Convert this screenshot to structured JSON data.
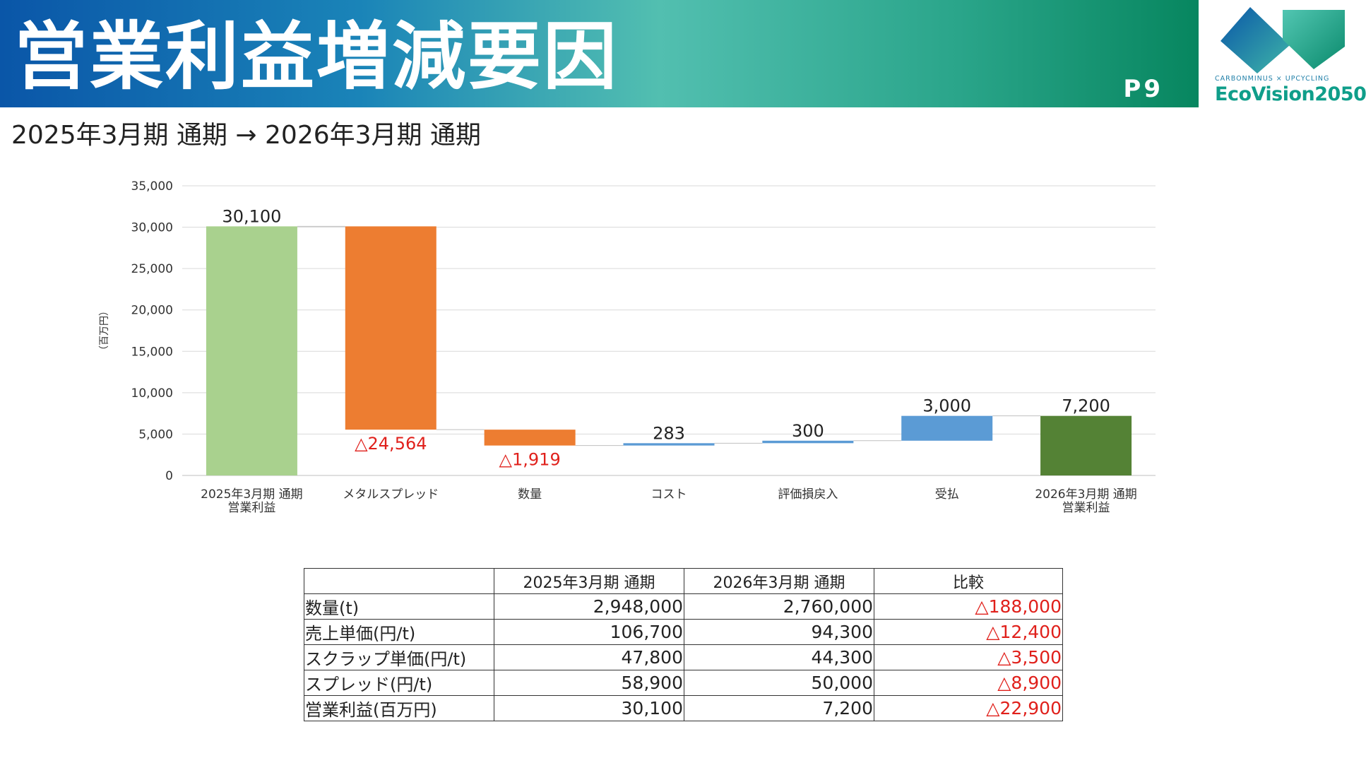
{
  "header": {
    "title": "営業利益増減要因",
    "page_number": "P9",
    "logo_tagline": "CARBONMINUS × UPCYCLING",
    "logo_name": "EcoVision2050",
    "accent_color": "#07865f",
    "gradient_start": "#0a56a8"
  },
  "subtitle": "2025年3月期 通期 → 2026年3月期 通期",
  "chart_data": {
    "type": "waterfall",
    "ylabel": "（百万円）",
    "ylim": [
      0,
      35000
    ],
    "yticks": [
      "0",
      "5,000",
      "10,000",
      "15,000",
      "20,000",
      "25,000",
      "30,000",
      "35,000"
    ],
    "grid": true,
    "categories": [
      [
        "2025年3月期 通期",
        "営業利益"
      ],
      [
        "メタルスプレッド"
      ],
      [
        "数量"
      ],
      [
        "コスト"
      ],
      [
        "評価損戻入"
      ],
      [
        "受払"
      ],
      [
        "2026年3月期 通期",
        "営業利益"
      ]
    ],
    "steps": [
      {
        "kind": "total",
        "value": 30100,
        "label": "30,100",
        "color": "#a9d18e"
      },
      {
        "kind": "delta",
        "value": -24564,
        "label": "△24,564",
        "color": "#ed7d31"
      },
      {
        "kind": "delta",
        "value": -1919,
        "label": "△1,919",
        "color": "#ed7d31"
      },
      {
        "kind": "delta",
        "value": 283,
        "label": "283",
        "color": "#5b9bd5"
      },
      {
        "kind": "delta",
        "value": 300,
        "label": "300",
        "color": "#5b9bd5"
      },
      {
        "kind": "delta",
        "value": 3000,
        "label": "3,000",
        "color": "#5b9bd5"
      },
      {
        "kind": "total",
        "value": 7200,
        "label": "7,200",
        "color": "#548235"
      }
    ]
  },
  "table": {
    "headers": [
      "",
      "2025年3月期 通期",
      "2026年3月期 通期",
      "比較"
    ],
    "rows": [
      [
        "数量(t)",
        "2,948,000",
        "2,760,000",
        "△188,000"
      ],
      [
        "売上単価(円/t)",
        "106,700",
        "94,300",
        "△12,400"
      ],
      [
        "スクラップ単価(円/t)",
        "47,800",
        "44,300",
        "△3,500"
      ],
      [
        "スプレッド(円/t)",
        "58,900",
        "50,000",
        "△8,900"
      ],
      [
        "営業利益(百万円)",
        "30,100",
        "7,200",
        "△22,900"
      ]
    ]
  }
}
